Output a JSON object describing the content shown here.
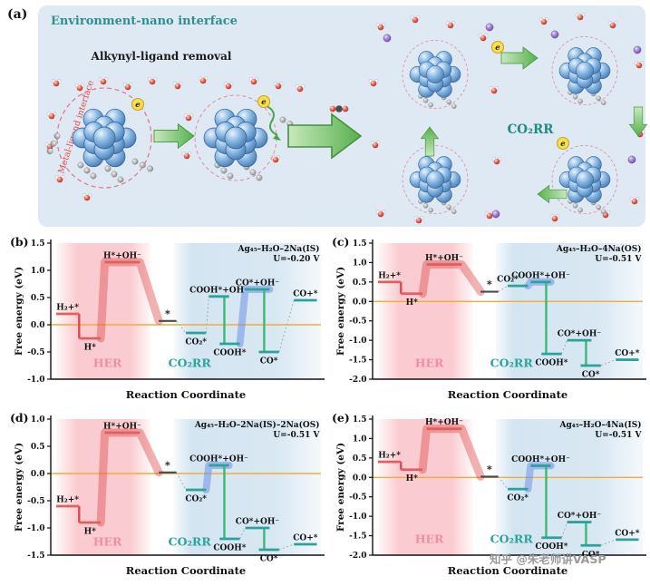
{
  "figure": {
    "watermark": "知乎 @朱老师讲VASP"
  },
  "colors": {
    "her_pink": "#f5a3ab",
    "co2rr_blue": "#a9cbe4",
    "teal": "#2ba39b",
    "zero_line_orange": "#f2ab3c",
    "cluster_blue": "#6fa8dc",
    "arrow_green": "#4caf50",
    "panel_a_background": "#dfe9f4",
    "sodium_purple": "#8e6bc8",
    "oxygen_red": "#d93a2b"
  },
  "panel_a": {
    "label": "(a)",
    "env_interface": "Environment-nano interface",
    "alkynyl_removal": "Alkynyl-ligand removal",
    "metal_ligand_interface": "Metal-ligand interface",
    "co2rr": "CO₂RR",
    "electron_label": "e"
  },
  "chart_data": [
    {
      "id": "b",
      "type": "energy-diagram",
      "panel_label": "(b)",
      "system": "Ag₄₅–H₂O–2Na(IS)",
      "potential": "U=-0.20 V",
      "xlabel": "Reaction Coordinate",
      "ylabel": "Free energy (eV)",
      "ylim": [
        -1.0,
        1.5
      ],
      "yticks": [
        1.5,
        1.0,
        0.5,
        0.0,
        -0.5,
        -1.0
      ],
      "label_y_frac": 0.09,
      "regions": {
        "her": {
          "label": "HER",
          "x": [
            0.02,
            0.37
          ],
          "label_x": 0.21
        },
        "co2rr": {
          "label": "CO₂RR",
          "x": [
            0.455,
            1.0
          ],
          "label_x": 0.435
        }
      },
      "levels": [
        {
          "label": "H₂+*",
          "value": 0.2,
          "x": [
            0.02,
            0.105
          ],
          "lp": "above",
          "c": "her",
          "drop": "her"
        },
        {
          "label": "H*",
          "value": -0.25,
          "x": [
            0.105,
            0.185
          ],
          "lp": "below",
          "c": "her"
        },
        {
          "label": "H*+OH⁻",
          "value": 1.15,
          "x": [
            0.2,
            0.33
          ],
          "lp": "above",
          "c": "her",
          "band": "red"
        },
        {
          "label": "*",
          "value": 0.07,
          "x": [
            0.4,
            0.465
          ],
          "lp": "above",
          "c": "mid"
        },
        {
          "label": "CO₂*",
          "value": -0.15,
          "x": [
            0.5,
            0.575
          ],
          "lp": "below",
          "c": "co2"
        },
        {
          "label": "COOH*+OH⁻",
          "value": 0.52,
          "x": [
            0.585,
            0.66
          ],
          "lp": "above",
          "c": "co2",
          "drop": "co2"
        },
        {
          "label": "COOH*",
          "value": -0.35,
          "x": [
            0.625,
            0.7
          ],
          "lp": "below",
          "c": "co2"
        },
        {
          "label": "CO*+OH⁻",
          "value": 0.65,
          "x": [
            0.72,
            0.81
          ],
          "lp": "above",
          "c": "co2",
          "band": "blue",
          "drop": "co2"
        },
        {
          "label": "CO*",
          "value": -0.5,
          "x": [
            0.77,
            0.845
          ],
          "lp": "below",
          "c": "co2"
        },
        {
          "label": "CO+*",
          "value": 0.45,
          "x": [
            0.9,
            0.985
          ],
          "lp": "above",
          "c": "co2"
        }
      ]
    },
    {
      "id": "c",
      "type": "energy-diagram",
      "panel_label": "(c)",
      "system": "Ag₄₅–H₂O–4Na(OS)",
      "potential": "U=-0.51 V",
      "xlabel": "Reaction Coordinate",
      "ylabel": "Free energy (eV)",
      "ylim": [
        -2.0,
        1.5
      ],
      "yticks": [
        1.5,
        1.0,
        0.5,
        0.0,
        -0.5,
        -1.0,
        -1.5,
        -2.0
      ],
      "label_y_frac": 0.09,
      "regions": {
        "her": {
          "label": "HER",
          "x": [
            0.02,
            0.37
          ],
          "label_x": 0.21
        },
        "co2rr": {
          "label": "CO₂RR",
          "x": [
            0.455,
            1.0
          ],
          "label_x": 0.435
        }
      },
      "levels": [
        {
          "label": "H₂+*",
          "value": 0.5,
          "x": [
            0.02,
            0.105
          ],
          "lp": "above",
          "c": "her",
          "drop": "her"
        },
        {
          "label": "H*",
          "value": 0.2,
          "x": [
            0.105,
            0.185
          ],
          "lp": "below",
          "c": "her"
        },
        {
          "label": "H*+OH⁻",
          "value": 0.95,
          "x": [
            0.2,
            0.33
          ],
          "lp": "above",
          "c": "her",
          "band": "red"
        },
        {
          "label": "*",
          "value": 0.25,
          "x": [
            0.4,
            0.465
          ],
          "lp": "above",
          "c": "mid"
        },
        {
          "label": "CO₂*",
          "value": 0.4,
          "x": [
            0.5,
            0.575
          ],
          "lp": "above",
          "c": "co2",
          "lx": 0.5
        },
        {
          "label": "COOH*+OH⁻",
          "value": 0.5,
          "x": [
            0.585,
            0.66
          ],
          "lp": "above",
          "c": "co2",
          "band": "blue",
          "drop": "co2"
        },
        {
          "label": "COOH*",
          "value": -1.35,
          "x": [
            0.625,
            0.7
          ],
          "lp": "below",
          "c": "co2"
        },
        {
          "label": "CO*+OH⁻",
          "value": -1.0,
          "x": [
            0.72,
            0.81
          ],
          "lp": "above",
          "c": "co2",
          "drop": "co2"
        },
        {
          "label": "CO*",
          "value": -1.65,
          "x": [
            0.77,
            0.845
          ],
          "lp": "below",
          "c": "co2"
        },
        {
          "label": "CO+*",
          "value": -1.5,
          "x": [
            0.9,
            0.985
          ],
          "lp": "above",
          "c": "co2"
        }
      ]
    },
    {
      "id": "d",
      "type": "energy-diagram",
      "panel_label": "(d)",
      "system": "Ag₄₅–H₂O–2Na(IS)–2Na(OS)",
      "potential": "U=-0.51 V",
      "xlabel": "Reaction Coordinate",
      "ylabel": "Free energy (eV)",
      "ylim": [
        -1.5,
        1.0
      ],
      "yticks": [
        1.0,
        0.5,
        0.0,
        -0.5,
        -1.0,
        -1.5
      ],
      "label_y_frac": 0.07,
      "regions": {
        "her": {
          "label": "HER",
          "x": [
            0.02,
            0.37
          ],
          "label_x": 0.21
        },
        "co2rr": {
          "label": "CO₂RR",
          "x": [
            0.455,
            1.0
          ],
          "label_x": 0.435
        }
      },
      "levels": [
        {
          "label": "H₂+*",
          "value": -0.6,
          "x": [
            0.02,
            0.105
          ],
          "lp": "above",
          "c": "her",
          "drop": "her"
        },
        {
          "label": "H*",
          "value": -0.9,
          "x": [
            0.105,
            0.185
          ],
          "lp": "below",
          "c": "her"
        },
        {
          "label": "H*+OH⁻",
          "value": 0.75,
          "x": [
            0.2,
            0.33
          ],
          "lp": "above",
          "c": "her",
          "band": "red"
        },
        {
          "label": "*",
          "value": 0.02,
          "x": [
            0.4,
            0.465
          ],
          "lp": "above",
          "c": "mid"
        },
        {
          "label": "CO₂*",
          "value": -0.3,
          "x": [
            0.5,
            0.575
          ],
          "lp": "below",
          "c": "co2"
        },
        {
          "label": "COOH*+OH⁻",
          "value": 0.15,
          "x": [
            0.585,
            0.66
          ],
          "lp": "above",
          "c": "co2",
          "band": "blue",
          "drop": "co2"
        },
        {
          "label": "COOH*",
          "value": -1.2,
          "x": [
            0.625,
            0.7
          ],
          "lp": "below",
          "c": "co2"
        },
        {
          "label": "CO*+OH⁻",
          "value": -1.0,
          "x": [
            0.72,
            0.81
          ],
          "lp": "above",
          "c": "co2",
          "drop": "co2"
        },
        {
          "label": "CO*",
          "value": -1.4,
          "x": [
            0.77,
            0.845
          ],
          "lp": "below",
          "c": "co2"
        },
        {
          "label": "CO+*",
          "value": -1.3,
          "x": [
            0.9,
            0.985
          ],
          "lp": "above",
          "c": "co2"
        }
      ]
    },
    {
      "id": "e",
      "type": "energy-diagram",
      "panel_label": "(e)",
      "system": "Ag₄₅–H₂O–4Na(IS)",
      "potential": "U=-0.51 V",
      "xlabel": "Reaction Coordinate",
      "ylabel": "Free energy (eV)",
      "ylim": [
        -2.0,
        1.5
      ],
      "yticks": [
        1.5,
        1.0,
        0.5,
        0.0,
        -0.5,
        -1.0,
        -1.5,
        -2.0
      ],
      "label_y_frac": 0.09,
      "regions": {
        "her": {
          "label": "HER",
          "x": [
            0.02,
            0.37
          ],
          "label_x": 0.21
        },
        "co2rr": {
          "label": "CO₂RR",
          "x": [
            0.455,
            1.0
          ],
          "label_x": 0.435
        }
      },
      "levels": [
        {
          "label": "H₂+*",
          "value": 0.4,
          "x": [
            0.02,
            0.105
          ],
          "lp": "above",
          "c": "her",
          "drop": "her"
        },
        {
          "label": "H*",
          "value": 0.2,
          "x": [
            0.105,
            0.185
          ],
          "lp": "below",
          "c": "her"
        },
        {
          "label": "H*+OH⁻",
          "value": 1.25,
          "x": [
            0.2,
            0.33
          ],
          "lp": "above",
          "c": "her",
          "band": "red"
        },
        {
          "label": "*",
          "value": 0.02,
          "x": [
            0.4,
            0.465
          ],
          "lp": "above",
          "c": "mid"
        },
        {
          "label": "CO₂*",
          "value": -0.3,
          "x": [
            0.5,
            0.575
          ],
          "lp": "below",
          "c": "co2"
        },
        {
          "label": "COOH*+OH⁻",
          "value": 0.3,
          "x": [
            0.585,
            0.66
          ],
          "lp": "above",
          "c": "co2",
          "band": "blue",
          "drop": "co2"
        },
        {
          "label": "COOH*",
          "value": -1.55,
          "x": [
            0.625,
            0.7
          ],
          "lp": "below",
          "c": "co2"
        },
        {
          "label": "CO*+OH⁻",
          "value": -1.15,
          "x": [
            0.72,
            0.81
          ],
          "lp": "above",
          "c": "co2",
          "drop": "co2"
        },
        {
          "label": "CO*",
          "value": -1.75,
          "x": [
            0.77,
            0.845
          ],
          "lp": "below",
          "c": "co2"
        },
        {
          "label": "CO+*",
          "value": -1.6,
          "x": [
            0.9,
            0.985
          ],
          "lp": "above",
          "c": "co2"
        }
      ]
    }
  ]
}
